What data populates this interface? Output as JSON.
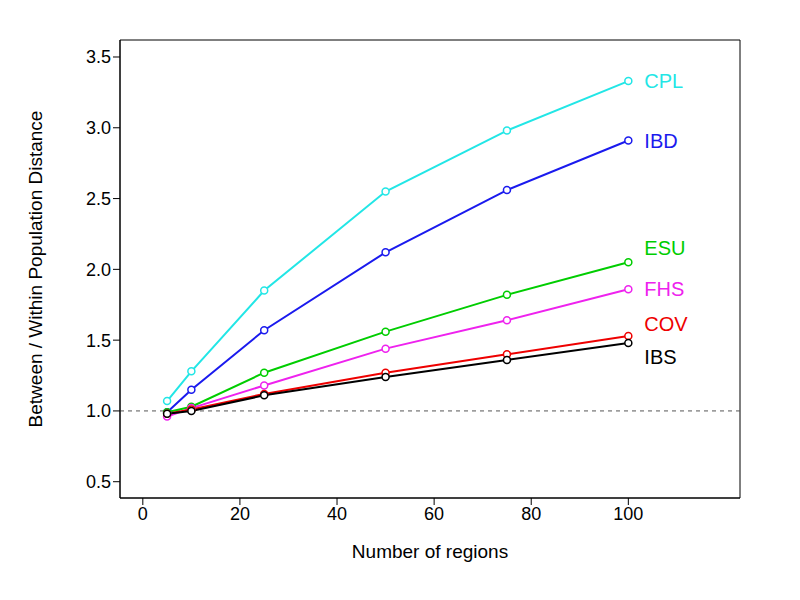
{
  "chart_data": {
    "type": "line",
    "x_label": "Number of regions",
    "y_label": "Between / Within Population Distance",
    "x": [
      5,
      10,
      25,
      50,
      75,
      100
    ],
    "series": [
      {
        "name": "CPL",
        "color": "#22e6e6",
        "values": [
          1.07,
          1.28,
          1.85,
          2.55,
          2.98,
          3.33
        ]
      },
      {
        "name": "IBD",
        "color": "#1a1aee",
        "values": [
          0.99,
          1.15,
          1.57,
          2.12,
          2.56,
          2.91
        ]
      },
      {
        "name": "ESU",
        "color": "#00cd00",
        "values": [
          0.99,
          1.03,
          1.27,
          1.56,
          1.82,
          2.05
        ]
      },
      {
        "name": "FHS",
        "color": "#ee22ee",
        "values": [
          0.96,
          1.02,
          1.18,
          1.44,
          1.64,
          1.86
        ]
      },
      {
        "name": "COV",
        "color": "#ee0000",
        "values": [
          0.98,
          1.01,
          1.12,
          1.27,
          1.4,
          1.53
        ]
      },
      {
        "name": "IBS",
        "color": "#000000",
        "values": [
          0.98,
          1.0,
          1.11,
          1.24,
          1.36,
          1.48
        ]
      }
    ],
    "marker": "circle",
    "reference_line": 1,
    "xlim": [
      -4.7,
      123
    ],
    "xticks": [
      0,
      20,
      40,
      60,
      80,
      100
    ],
    "ylim": [
      0.385,
      3.62
    ],
    "yticks": [
      0.5,
      {
        "value": 1,
        "label": "1.0"
      },
      1.5,
      {
        "value": 2,
        "label": "2.0"
      },
      2.5,
      {
        "value": 3,
        "label": "3.0"
      },
      3.5
    ],
    "grid": false
  }
}
